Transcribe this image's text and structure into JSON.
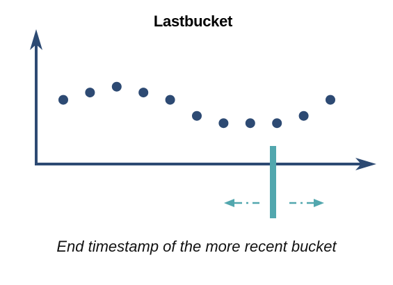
{
  "title": "Lastbucket",
  "caption": "End timestamp of the more recent bucket",
  "colors": {
    "axis": "#2d4a73",
    "point": "#2d4a73",
    "marker": "#52a7ae",
    "title": "#000000",
    "caption": "#111111"
  },
  "points_relative_level": [
    0.44,
    0.49,
    0.53,
    0.49,
    0.44,
    0.33,
    0.28,
    0.28,
    0.28,
    0.33,
    0.44
  ],
  "marker": {
    "description_icons": [
      "arrow-left-icon",
      "arrow-right-icon"
    ]
  }
}
